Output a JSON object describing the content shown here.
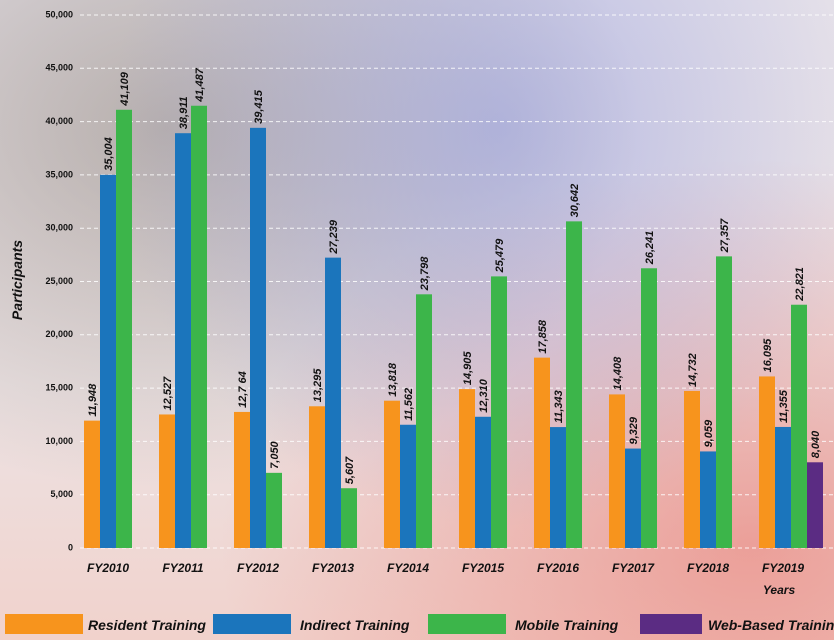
{
  "chart_data": {
    "type": "bar",
    "y_label": "Participants",
    "x_label": "Years",
    "categories": [
      "FY2010",
      "FY2011",
      "FY2012",
      "FY2013",
      "FY2014",
      "FY2015",
      "FY2016",
      "FY2017",
      "FY2018",
      "FY2019"
    ],
    "series": [
      {
        "name": "Resident Training",
        "color": "#f7941d",
        "values": [
          11948,
          12527,
          12764,
          13295,
          13818,
          14905,
          17858,
          14408,
          14732,
          16095
        ],
        "value_labels": [
          "11,948",
          "12,527",
          "12,7 64",
          "13,295",
          "13,818",
          "14,905",
          "17,858",
          "14,408",
          "14,732",
          "16,095"
        ]
      },
      {
        "name": "Indirect Training",
        "color": "#1b75bc",
        "values": [
          35004,
          38911,
          39415,
          27239,
          11562,
          12310,
          11343,
          9329,
          9059,
          11355
        ],
        "value_labels": [
          "35,004",
          "38,911",
          "39,415",
          "27,239",
          "11,562",
          "12,310",
          "11,343",
          "9,329",
          "9,059",
          "11,355"
        ]
      },
      {
        "name": "Mobile Training",
        "color": "#3cb54a",
        "values": [
          41109,
          41487,
          7050,
          5607,
          23798,
          25479,
          30642,
          26241,
          27357,
          22821
        ],
        "value_labels": [
          "41,109",
          "41,487",
          "7,050",
          "5,607",
          "23,798",
          "25,479",
          "30,642",
          "26,241",
          "27,357",
          "22,821"
        ]
      },
      {
        "name": "Web-Based Training",
        "color": "#5b2c83",
        "values": [
          null,
          null,
          null,
          null,
          null,
          null,
          null,
          null,
          null,
          8040
        ],
        "value_labels": [
          null,
          null,
          null,
          null,
          null,
          null,
          null,
          null,
          null,
          "8,040"
        ]
      }
    ],
    "ylim": [
      0,
      50000
    ],
    "yticks": [
      0,
      {
        "value": 5000,
        "label": "5,000"
      },
      {
        "value": 10000,
        "label": "10,000"
      },
      {
        "value": 15000,
        "label": "15,000"
      },
      {
        "value": 20000,
        "label": "20,000"
      },
      {
        "value": 25000,
        "label": "25,000"
      },
      {
        "value": 30000,
        "label": "30,000"
      },
      {
        "value": 35000,
        "label": "35,000"
      },
      {
        "value": 40000,
        "label": "40,000"
      },
      {
        "value": 45000,
        "label": "45,000"
      },
      {
        "value": 50000,
        "label": "50,000"
      }
    ],
    "grid": true
  }
}
